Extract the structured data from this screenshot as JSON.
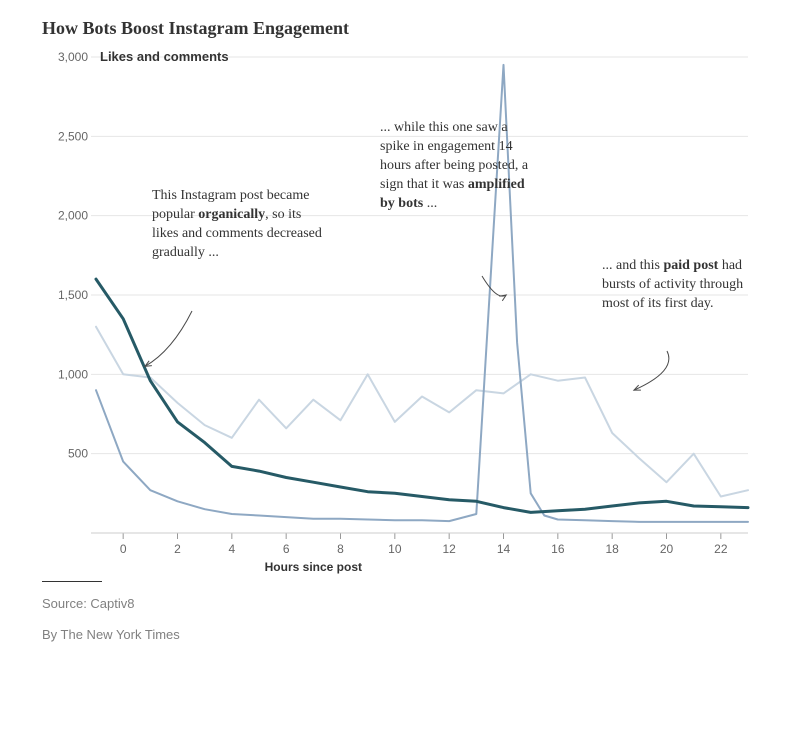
{
  "title": "How Bots Boost Instagram Engagement",
  "subtitle_prefix": "3,000",
  "subtitle_label": "Likes and comments",
  "chart": {
    "type": "line",
    "x_label": "Hours since post",
    "x_ticks": [
      0,
      2,
      4,
      6,
      8,
      10,
      12,
      14,
      16,
      18,
      20,
      22
    ],
    "y_ticks": [
      {
        "v": 500,
        "label": "500"
      },
      {
        "v": 1000,
        "label": "1,000"
      },
      {
        "v": 1500,
        "label": "1,500"
      },
      {
        "v": 2000,
        "label": "2,000"
      },
      {
        "v": 2500,
        "label": "2,500"
      },
      {
        "v": 3000,
        "label": "3,000"
      }
    ],
    "xlim": [
      -1,
      23
    ],
    "ylim": [
      0,
      3000
    ],
    "grid_color": "#e6e6e6",
    "tick_font_size": 12,
    "series": {
      "organic": {
        "color": "#265a66",
        "width": 3,
        "opacity": 1,
        "x": [
          -1,
          0,
          1,
          2,
          3,
          4,
          5,
          6,
          7,
          8,
          9,
          10,
          11,
          12,
          13,
          14,
          15,
          16,
          17,
          18,
          19,
          20,
          21,
          22,
          23
        ],
        "y": [
          1600,
          1350,
          960,
          700,
          570,
          420,
          390,
          350,
          320,
          290,
          260,
          250,
          230,
          210,
          200,
          160,
          130,
          140,
          150,
          170,
          190,
          200,
          170,
          165,
          160
        ]
      },
      "bot": {
        "color": "#8ea8c3",
        "width": 2,
        "opacity": 1,
        "x": [
          -1,
          0,
          1,
          2,
          3,
          4,
          5,
          6,
          7,
          8,
          9,
          10,
          11,
          12,
          13,
          14,
          14.5,
          15,
          15.5,
          16,
          17,
          18,
          19,
          20,
          21,
          22,
          23
        ],
        "y": [
          900,
          450,
          270,
          200,
          150,
          120,
          110,
          100,
          90,
          90,
          85,
          80,
          80,
          75,
          120,
          2950,
          1200,
          250,
          110,
          85,
          80,
          75,
          70,
          70,
          70,
          70,
          70
        ]
      },
      "paid": {
        "color": "#c9d6e2",
        "width": 2,
        "opacity": 1,
        "x": [
          -1,
          0,
          1,
          2,
          3,
          4,
          5,
          6,
          7,
          8,
          9,
          10,
          11,
          12,
          13,
          14,
          15,
          16,
          17,
          18,
          19,
          20,
          21,
          22,
          23
        ],
        "y": [
          1300,
          1000,
          980,
          820,
          680,
          600,
          840,
          660,
          840,
          710,
          1000,
          700,
          860,
          760,
          900,
          880,
          1000,
          960,
          980,
          630,
          470,
          320,
          500,
          230,
          270
        ]
      }
    }
  },
  "annotations": {
    "organic_html": "This Instagram post became popular <b>organically</b>, so its likes and comments decreased gradually ...",
    "bot_html": "... while this one saw a spike in engagement 14 hours after being posted, a sign that it was <b>amplified by bots</b> ...",
    "paid_html": "... and this <b>paid post</b> had bursts of activity through most of its first day."
  },
  "source_label": "Source: Captiv8",
  "byline": "By The New York Times"
}
